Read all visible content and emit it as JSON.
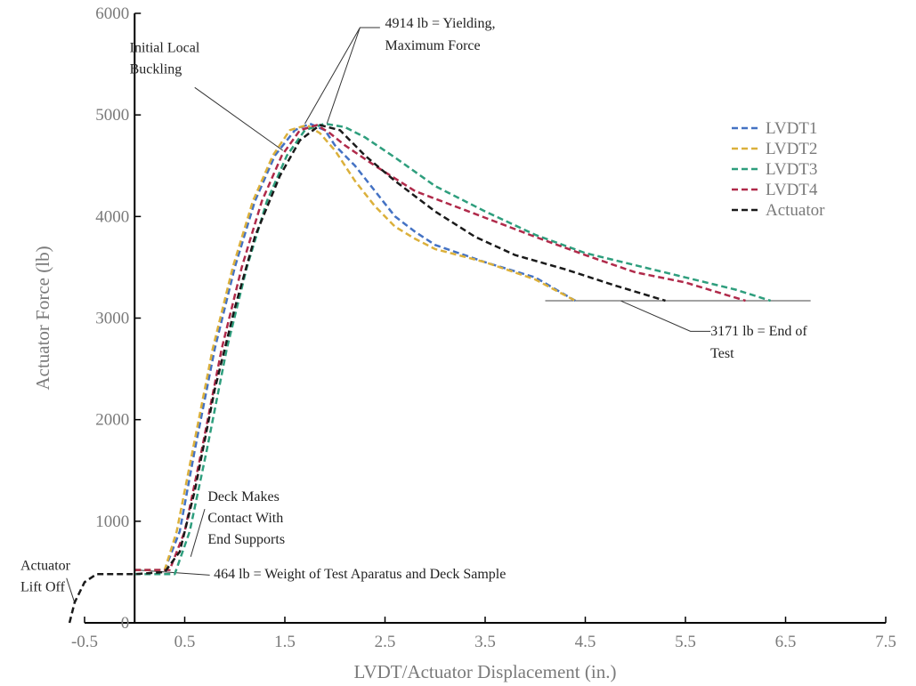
{
  "chart_data": {
    "type": "line",
    "title": "",
    "xlabel": "LVDT/Actuator Displacement (in.)",
    "ylabel": "Actuator Force (lb)",
    "xlim": [
      -0.5,
      7.5
    ],
    "ylim": [
      0,
      6000
    ],
    "xticks": [
      -0.5,
      0.5,
      1.5,
      2.5,
      3.5,
      4.5,
      5.5,
      6.5,
      7.5
    ],
    "yticks": [
      0,
      1000,
      2000,
      3000,
      4000,
      5000,
      6000
    ],
    "xtick_labels": [
      "-0.5",
      "0.5",
      "1.5",
      "2.5",
      "3.5",
      "4.5",
      "5.5",
      "6.5",
      "7.5"
    ],
    "ytick_labels": [
      "0",
      "1000",
      "2000",
      "3000",
      "4000",
      "5000",
      "6000"
    ],
    "grid": false,
    "legend": "right",
    "series": [
      {
        "name": "LVDT1",
        "color": "#4472c4",
        "points": [
          [
            0,
            520
          ],
          [
            0.3,
            520
          ],
          [
            0.45,
            900
          ],
          [
            0.6,
            1700
          ],
          [
            0.8,
            2700
          ],
          [
            1.0,
            3500
          ],
          [
            1.2,
            4150
          ],
          [
            1.4,
            4600
          ],
          [
            1.6,
            4850
          ],
          [
            1.75,
            4914
          ],
          [
            1.9,
            4850
          ],
          [
            2.0,
            4700
          ],
          [
            2.2,
            4500
          ],
          [
            2.4,
            4250
          ],
          [
            2.6,
            4000
          ],
          [
            2.8,
            3850
          ],
          [
            3.0,
            3720
          ],
          [
            3.5,
            3550
          ],
          [
            4.0,
            3400
          ],
          [
            4.4,
            3171
          ]
        ]
      },
      {
        "name": "LVDT2",
        "color": "#dbb03b",
        "points": [
          [
            0,
            520
          ],
          [
            0.3,
            520
          ],
          [
            0.42,
            900
          ],
          [
            0.58,
            1700
          ],
          [
            0.78,
            2700
          ],
          [
            0.98,
            3500
          ],
          [
            1.18,
            4150
          ],
          [
            1.38,
            4600
          ],
          [
            1.55,
            4850
          ],
          [
            1.72,
            4900
          ],
          [
            1.85,
            4820
          ],
          [
            2.0,
            4650
          ],
          [
            2.2,
            4350
          ],
          [
            2.4,
            4100
          ],
          [
            2.6,
            3900
          ],
          [
            2.8,
            3780
          ],
          [
            3.0,
            3680
          ],
          [
            3.5,
            3550
          ],
          [
            4.0,
            3380
          ],
          [
            4.4,
            3171
          ]
        ]
      },
      {
        "name": "LVDT3",
        "color": "#2e9e7d",
        "points": [
          [
            0,
            480
          ],
          [
            0.4,
            480
          ],
          [
            0.55,
            900
          ],
          [
            0.72,
            1700
          ],
          [
            0.92,
            2700
          ],
          [
            1.12,
            3500
          ],
          [
            1.32,
            4150
          ],
          [
            1.52,
            4600
          ],
          [
            1.7,
            4850
          ],
          [
            1.9,
            4914
          ],
          [
            2.1,
            4880
          ],
          [
            2.3,
            4780
          ],
          [
            2.6,
            4580
          ],
          [
            3.0,
            4300
          ],
          [
            3.5,
            4050
          ],
          [
            4.0,
            3820
          ],
          [
            4.5,
            3640
          ],
          [
            5.0,
            3520
          ],
          [
            5.5,
            3400
          ],
          [
            6.0,
            3280
          ],
          [
            6.35,
            3171
          ]
        ]
      },
      {
        "name": "LVDT4",
        "color": "#b02a4a",
        "points": [
          [
            0,
            520
          ],
          [
            0.35,
            520
          ],
          [
            0.5,
            900
          ],
          [
            0.67,
            1700
          ],
          [
            0.87,
            2700
          ],
          [
            1.07,
            3500
          ],
          [
            1.27,
            4150
          ],
          [
            1.47,
            4600
          ],
          [
            1.65,
            4850
          ],
          [
            1.82,
            4900
          ],
          [
            1.95,
            4820
          ],
          [
            2.1,
            4700
          ],
          [
            2.4,
            4500
          ],
          [
            2.8,
            4250
          ],
          [
            3.2,
            4100
          ],
          [
            3.6,
            3950
          ],
          [
            4.0,
            3800
          ],
          [
            4.5,
            3620
          ],
          [
            5.0,
            3450
          ],
          [
            5.5,
            3350
          ],
          [
            6.1,
            3171
          ]
        ]
      },
      {
        "name": "Actuator",
        "color": "#1a1a1a",
        "points": [
          [
            -0.65,
            0
          ],
          [
            -0.6,
            200
          ],
          [
            -0.5,
            400
          ],
          [
            -0.38,
            480
          ],
          [
            0.0,
            480
          ],
          [
            0.3,
            500
          ],
          [
            0.45,
            700
          ],
          [
            0.6,
            1300
          ],
          [
            0.8,
            2300
          ],
          [
            1.0,
            3100
          ],
          [
            1.2,
            3800
          ],
          [
            1.45,
            4400
          ],
          [
            1.65,
            4750
          ],
          [
            1.85,
            4900
          ],
          [
            2.05,
            4850
          ],
          [
            2.3,
            4600
          ],
          [
            2.6,
            4350
          ],
          [
            3.0,
            4050
          ],
          [
            3.4,
            3800
          ],
          [
            3.8,
            3620
          ],
          [
            4.3,
            3480
          ],
          [
            4.8,
            3320
          ],
          [
            5.3,
            3171
          ]
        ]
      }
    ],
    "annotations": [
      {
        "text": "4914 lb = Yielding,",
        "x": 2.5,
        "y": 5860
      },
      {
        "text": "Maximum Force",
        "x": 2.5,
        "y": 5640
      },
      {
        "text": "Initial Local",
        "x": -0.05,
        "y": 5620
      },
      {
        "text": "Buckling",
        "x": -0.05,
        "y": 5410
      },
      {
        "text": "3171 lb = End of",
        "x": 5.75,
        "y": 2830
      },
      {
        "text": "Test",
        "x": 5.75,
        "y": 2610
      },
      {
        "text": "Deck Makes",
        "x": 0.73,
        "y": 1200
      },
      {
        "text": "Contact With",
        "x": 0.73,
        "y": 990
      },
      {
        "text": "End Supports",
        "x": 0.73,
        "y": 780
      },
      {
        "text": "464 lb = Weight of Test Aparatus and Deck Sample",
        "x": 0.79,
        "y": 440
      },
      {
        "text": "Actuator",
        "x": -1.14,
        "y": 520
      },
      {
        "text": "Lift Off",
        "x": -1.14,
        "y": 310
      }
    ],
    "reference_lines": [
      {
        "x1": 4.1,
        "x2": 6.75,
        "y": 3171
      }
    ],
    "leaders": [
      [
        [
          2.45,
          5860
        ],
        [
          2.25,
          5860
        ],
        [
          1.7,
          4914
        ]
      ],
      [
        [
          2.25,
          5860
        ],
        [
          1.92,
          4914
        ]
      ],
      [
        [
          0.6,
          5270
        ],
        [
          1.48,
          4650
        ]
      ],
      [
        [
          5.75,
          2870
        ],
        [
          5.55,
          2870
        ],
        [
          4.85,
          3171
        ]
      ],
      [
        [
          0.7,
          1120
        ],
        [
          0.56,
          650
        ]
      ],
      [
        [
          0.75,
          470
        ],
        [
          0.02,
          520
        ]
      ],
      [
        [
          -0.68,
          440
        ],
        [
          -0.6,
          200
        ]
      ]
    ]
  }
}
